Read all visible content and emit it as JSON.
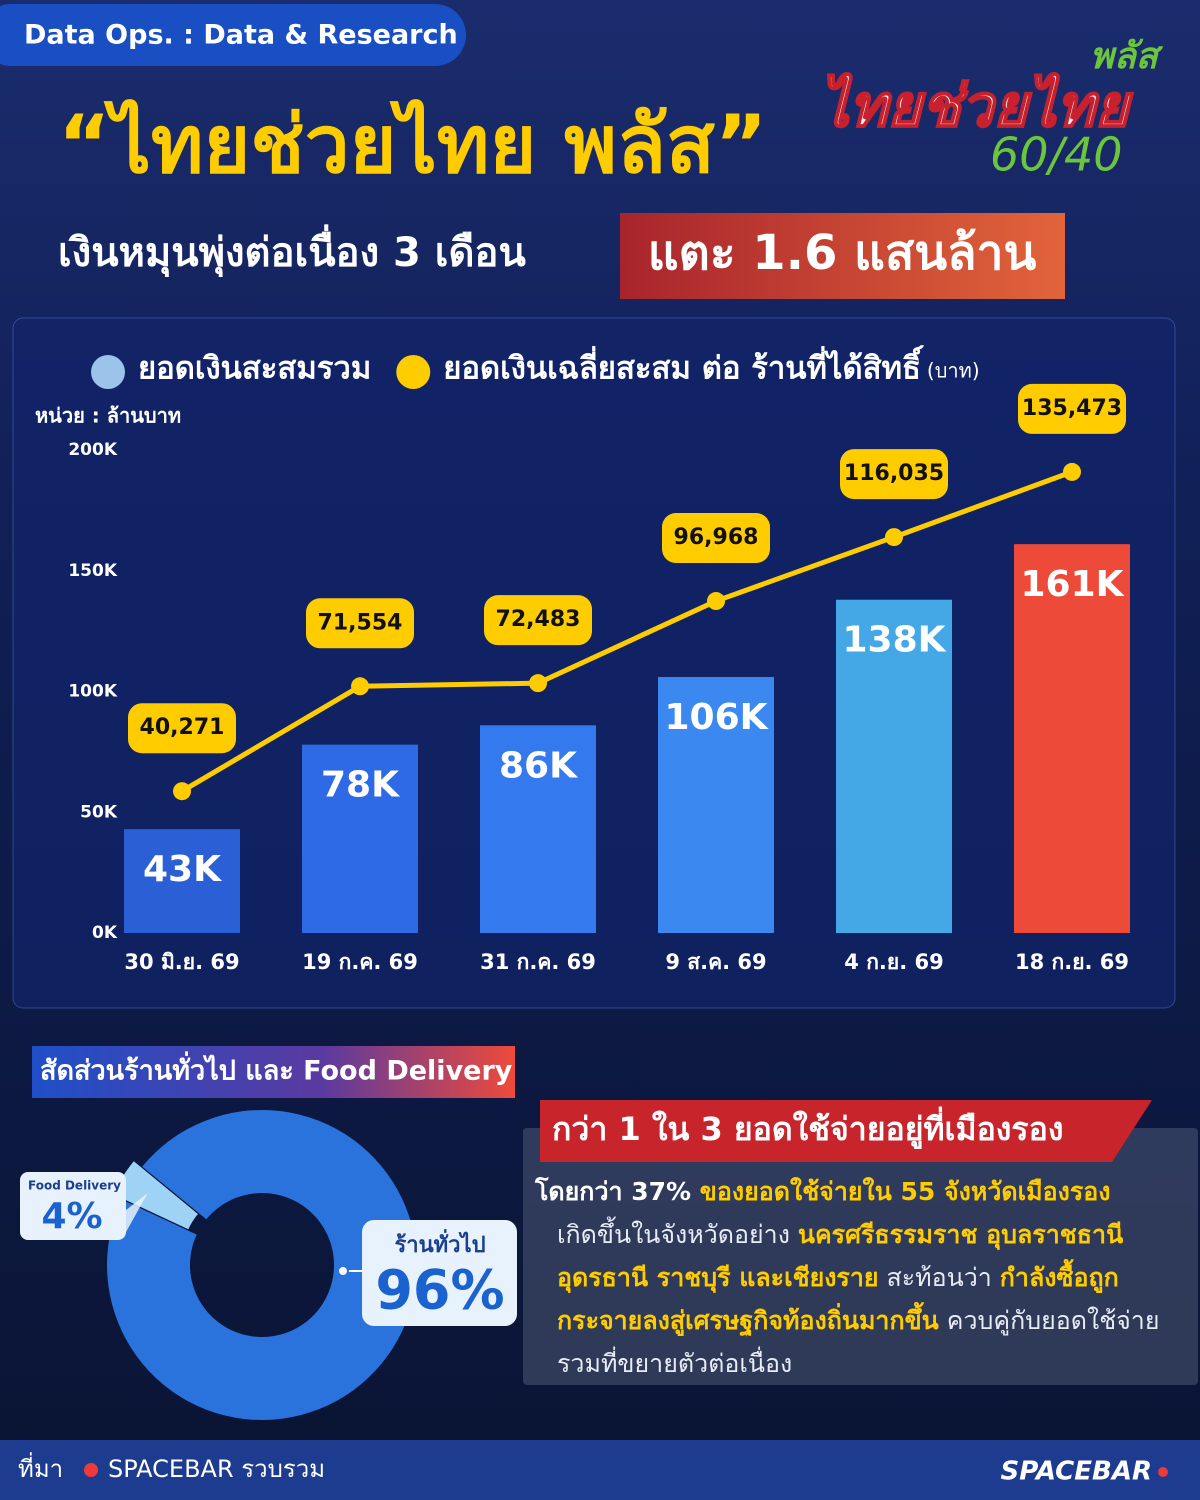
{
  "header": {
    "tag": "Data Ops.  : Data & Research",
    "title": "“ไทยช่วยไทย พลัส”",
    "subtitle": "เงินหมุนพุ่งต่อเนื่อง 3 เดือน",
    "highlight": "แตะ 1.6 แสนล้าน",
    "logo": {
      "name": "ไทยช่วยไทย",
      "plus": "พลัส",
      "ratio": "60/40"
    }
  },
  "chart_data": [
    {
      "type": "bar",
      "unit_label": "หน่วย : ล้านบาท",
      "categories": [
        "30 มิ.ย. 69",
        "19 ก.ค. 69",
        "31 ก.ค. 69",
        "9 ส.ค. 69",
        "4 ก.ย. 69",
        "18 ก.ย. 69"
      ],
      "series": [
        {
          "name": "ยอดเงินสะสมรวม",
          "color": "#9cc3ea",
          "colors": [
            "#2a5fd6",
            "#2f6ae6",
            "#3479ee",
            "#3a88f0",
            "#44a8e6",
            "#ee4a3a"
          ],
          "values": [
            43000,
            78000,
            86000,
            106000,
            138000,
            161000
          ],
          "value_labels": [
            "43K",
            "78K",
            "86K",
            "106K",
            "138K",
            "161K"
          ]
        },
        {
          "name": "ยอดเงินเฉลี่ยสะสม ต่อ ร้านที่ได้สิทธิ์",
          "unit": "(บาท)",
          "type": "line",
          "axis": "y2",
          "color": "#ffcc00",
          "values": [
            40271,
            71554,
            72483,
            96968,
            116035,
            135473
          ],
          "value_labels": [
            "40,271",
            "71,554",
            "72,483",
            "96,968",
            "116,035",
            "135,473"
          ]
        }
      ],
      "ylim": [
        0,
        200000
      ],
      "yticks": [
        {
          "value": 0,
          "label": "0K"
        },
        {
          "value": 50000,
          "label": "50K"
        },
        {
          "value": 100000,
          "label": "100K"
        },
        {
          "value": 150000,
          "label": "150K"
        },
        {
          "value": 200000,
          "label": "200K"
        }
      ],
      "y2lim": [
        -2000,
        142000
      ]
    },
    {
      "type": "donut",
      "title": "สัดส่วนร้านทั่วไป และ Food Delivery",
      "categories": [
        "Food Delivery",
        "ร้านทั่วไป"
      ],
      "values": [
        4,
        96
      ],
      "value_labels": [
        "4%",
        "96%"
      ],
      "colors": [
        "#9fd3f5",
        "#2a72dc"
      ]
    }
  ],
  "callout": {
    "title": "กว่า 1 ใน 3 ยอดใช้จ่ายอยู่ที่เมืองรอง",
    "lead": [
      {
        "text": "โดยกว่า 37% ",
        "style": "bold"
      },
      {
        "text": "ของยอดใช้จ่ายใน 55 จังหวัดเมืองรอง",
        "style": "highlight"
      }
    ],
    "body": [
      {
        "text": "เกิดขึ้นในจังหวัดอย่าง ",
        "style": "plain"
      },
      {
        "text": "นครศรีธรรมราช อุบลราชธานี อุดรธานี ราชบุรี และเชียงราย",
        "style": "highlight"
      },
      {
        "text": " สะท้อนว่า ",
        "style": "plain"
      },
      {
        "text": "กำลังซื้อถูกกระจายลงสู่เศรษฐกิจท้องถิ่นมากขึ้น",
        "style": "highlight"
      },
      {
        "text": " ควบคู่กับยอดใช้จ่ายรวมที่ขยายตัวต่อเนื่อง",
        "style": "plain"
      }
    ]
  },
  "footer": {
    "source_label": "ที่มา",
    "source": "SPACEBAR รวบรวม",
    "brand": "SPACEBAR"
  }
}
